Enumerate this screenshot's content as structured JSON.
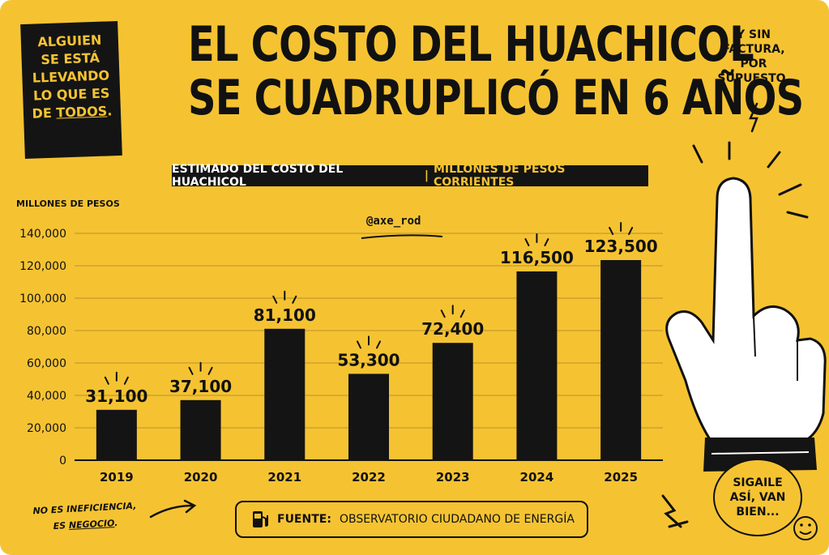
{
  "sticker_lines": [
    "ALGUIEN",
    "SE ESTÁ",
    "LLEVANDO",
    "LO QUE ES"
  ],
  "sticker_last_prefix": "DE ",
  "sticker_last_underlined": "TODOS",
  "sticker_last_suffix": ".",
  "title_line1": "EL COSTO DEL HUACHICOL",
  "title_line2": "SE CUADRUPLICÓ EN 6 AÑOS",
  "note_right": [
    "Y SIN",
    "FACTURA,",
    "POR SUPUESTO."
  ],
  "subtitle_main": "ESTIMADO DEL COSTO DEL HUACHICOL",
  "subtitle_sep": "|",
  "subtitle_accent": "MILLONES DE PESOS CORRIENTES",
  "handle": "@axe_rod",
  "bottom_left_1": "NO ES INEFICIENCIA,",
  "bottom_left_2_prefix": "ES ",
  "bottom_left_2_underlined": "NEGOCIO",
  "bottom_left_2_suffix": ".",
  "source_label": "FUENTE:",
  "source_text": "OBSERVATORIO CIUDADANO DE ENERGÍA",
  "bubble_lines": [
    "SIGAILE",
    "ASÍ, VAN",
    "BIEN..."
  ],
  "colors": {
    "background": "#f5c332",
    "bar": "#141414",
    "text": "#111111",
    "hand_fill": "#ffffff"
  },
  "icons": [
    "fuel-pump-icon",
    "middle-finger-hand-icon",
    "lightning-icon",
    "smiley-icon",
    "arrow-icon"
  ],
  "chart_data": {
    "type": "bar",
    "title": "ESTIMADO DEL COSTO DEL HUACHICOL",
    "subtitle": "MILLONES DE PESOS CORRIENTES",
    "ylabel": "MILLONES DE PESOS",
    "xlabel": "",
    "categories": [
      "2019",
      "2020",
      "2021",
      "2022",
      "2023",
      "2024",
      "2025"
    ],
    "values": [
      31100,
      37100,
      81100,
      53300,
      72400,
      116500,
      123500
    ],
    "value_labels": [
      "31,100",
      "37,100",
      "81,100",
      "53,300",
      "72,400",
      "116,500",
      "123,500"
    ],
    "ylim": [
      0,
      140000
    ],
    "yticks": [
      0,
      20000,
      40000,
      60000,
      80000,
      100000,
      120000,
      140000
    ],
    "ytick_labels": [
      "0",
      "20,000",
      "40,000",
      "60,000",
      "80,000",
      "100,000",
      "120,000",
      "140,000"
    ],
    "grid": true,
    "legend": "none"
  }
}
